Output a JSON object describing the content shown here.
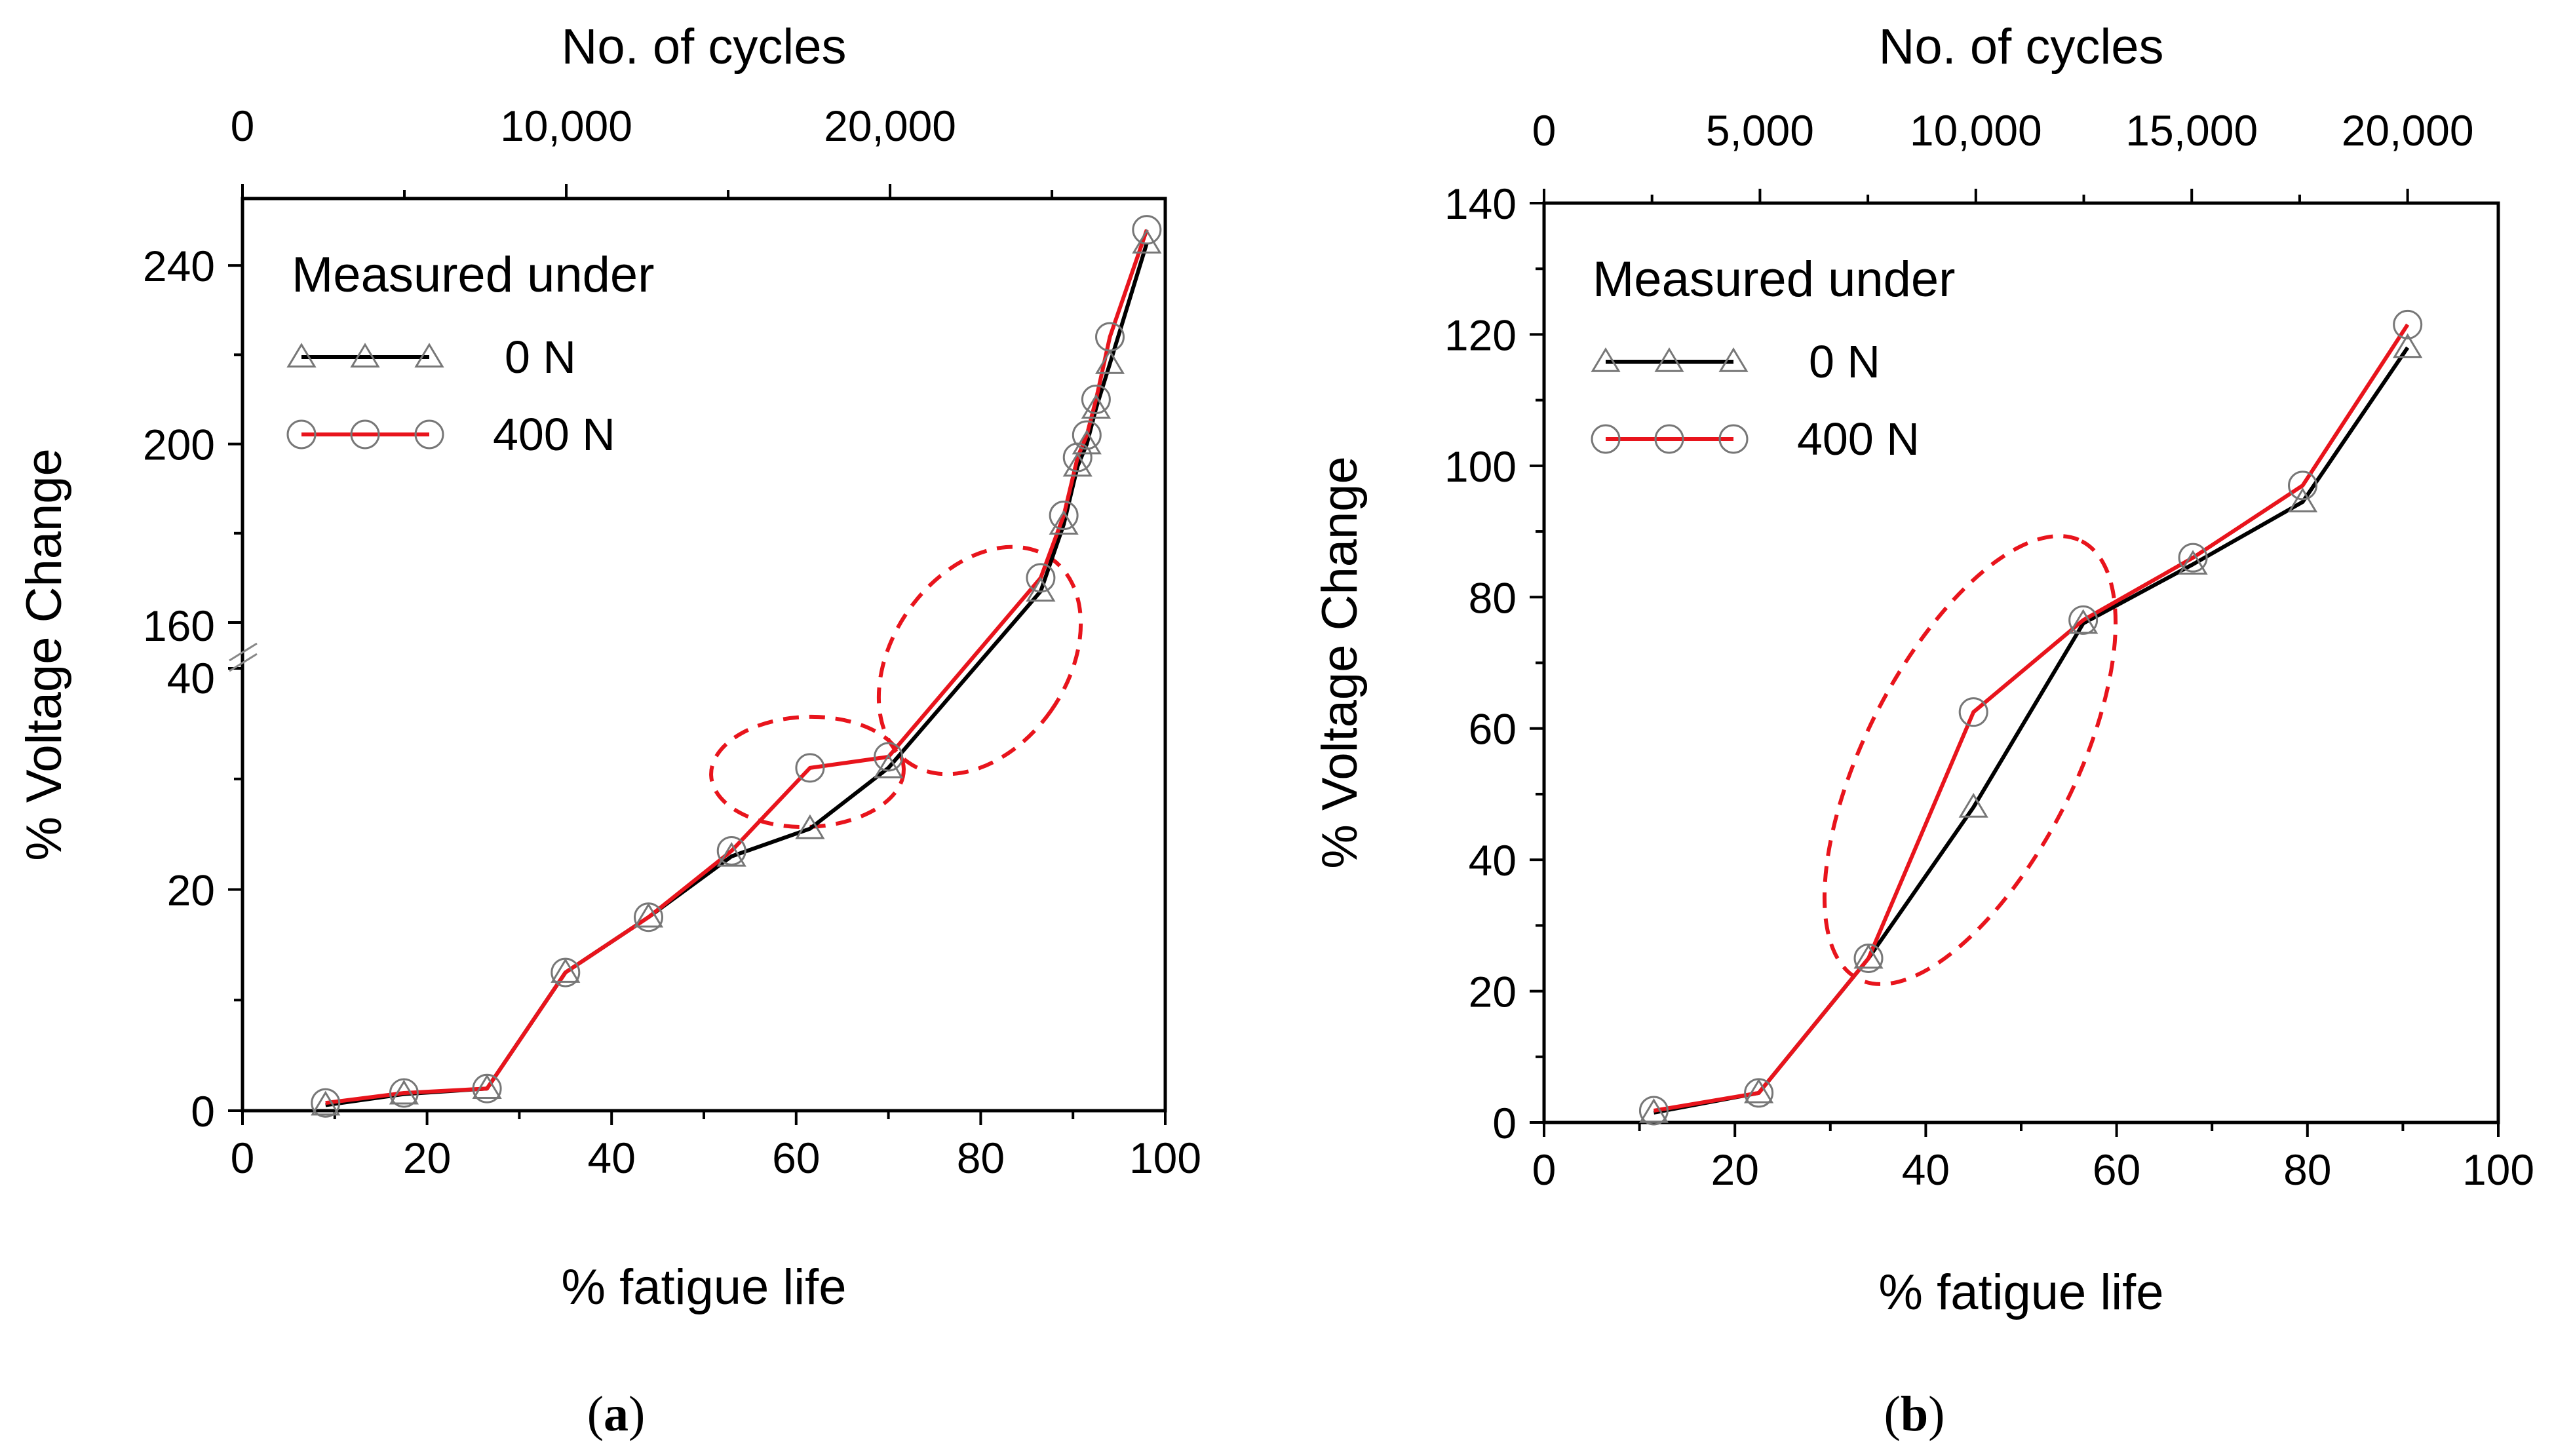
{
  "chart_data": [
    {
      "id": "a",
      "type": "line",
      "panel_label": "(a)",
      "panel_letter": "a",
      "xlabel": "% fatigue life",
      "x2label": "No. of cycles",
      "ylabel": "% Voltage Change",
      "xlim": [
        0,
        100
      ],
      "x_ticks": [
        0,
        20,
        40,
        60,
        80,
        100
      ],
      "x2_ticks": [
        0,
        10000,
        20000
      ],
      "x2_tick_labels": [
        "0",
        "10,000",
        "20,000"
      ],
      "x2_max_cycles": 28500,
      "y_axis_break": {
        "lower_range": [
          0,
          40
        ],
        "upper_range": [
          160,
          255
        ]
      },
      "y_tick_labels": [
        "0",
        "20",
        "40",
        "160",
        "200",
        "240"
      ],
      "legend_title": "Measured under",
      "legend_position": "top-left",
      "series": [
        {
          "name": "0 N",
          "color": "#000000",
          "marker": "triangle",
          "x": [
            9,
            17.5,
            26.5,
            35,
            44,
            53,
            61.5,
            70,
            86.5,
            89,
            90.5,
            91.5,
            92.5,
            94,
            98
          ],
          "y": [
            0.5,
            1.5,
            2,
            12.5,
            17.5,
            23,
            25.5,
            31,
            167,
            182,
            195,
            200,
            208,
            218,
            245
          ]
        },
        {
          "name": "400 N",
          "color": "#e8141c",
          "marker": "circle",
          "x": [
            9,
            17.5,
            26.5,
            35,
            44,
            53,
            61.5,
            70,
            86.5,
            89,
            90.5,
            91.5,
            92.5,
            94,
            98
          ],
          "y": [
            0.7,
            1.6,
            2,
            12.5,
            17.5,
            23.5,
            31,
            32,
            170,
            184,
            197,
            202,
            210,
            224,
            248
          ]
        }
      ],
      "annotations": [
        "dashed red ellipses highlighting the divergence of the two series near 60–70% and 70–87% fatigue life"
      ]
    },
    {
      "id": "b",
      "type": "line",
      "panel_label": "(b)",
      "panel_letter": "b",
      "xlabel": "% fatigue life",
      "x2label": "No. of cycles",
      "ylabel": "% Voltage Change",
      "xlim": [
        0,
        100
      ],
      "ylim": [
        0,
        140
      ],
      "x_ticks": [
        0,
        20,
        40,
        60,
        80,
        100
      ],
      "y_ticks": [
        0,
        20,
        40,
        60,
        80,
        100,
        120,
        140
      ],
      "x2_ticks": [
        0,
        5000,
        10000,
        15000,
        20000
      ],
      "x2_tick_labels": [
        "0",
        "5,000",
        "10,000",
        "15,000",
        "20,000"
      ],
      "x2_max_cycles": 22100,
      "legend_title": "Measured under",
      "legend_position": "top-left",
      "series": [
        {
          "name": "0 N",
          "color": "#000000",
          "marker": "triangle",
          "x": [
            11.5,
            22.5,
            34,
            45,
            56.5,
            68,
            79.5,
            90.5
          ],
          "y": [
            1.5,
            4.5,
            25,
            48,
            76,
            85,
            94.5,
            118
          ]
        },
        {
          "name": "400 N",
          "color": "#e8141c",
          "marker": "circle",
          "x": [
            11.5,
            22.5,
            34,
            45,
            56.5,
            68,
            79.5,
            90.5
          ],
          "y": [
            1.8,
            4.5,
            25,
            62.5,
            76.5,
            86,
            97,
            121.5
          ]
        }
      ],
      "annotations": [
        "dashed red ellipse highlighting the divergence of the two series between 35% and 57% fatigue life"
      ]
    }
  ]
}
